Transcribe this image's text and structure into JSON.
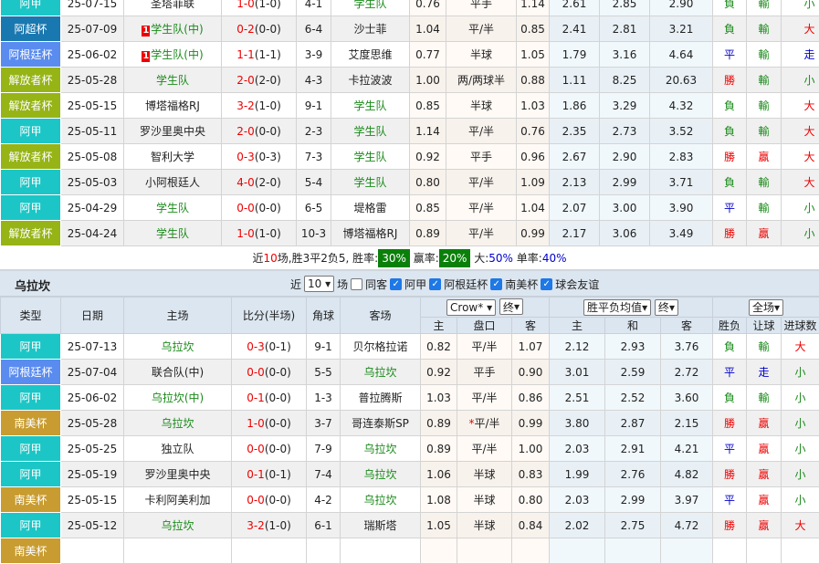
{
  "colors": {
    "阿甲": "#1cc6c6",
    "阿超杯": "#1a78b0",
    "阿根廷杯": "#5a8cf0",
    "解放者杯": "#96b416",
    "南美杯": "#c89c30"
  },
  "top": {
    "rows": [
      {
        "type": "阿甲",
        "date": "25-07-15",
        "home": "圣塔菲联",
        "score": "1-0",
        "ht": "(1-0)",
        "corner": "4-1",
        "away": "学生队",
        "hl": "away",
        "o1": "0.76",
        "line": "平手",
        "o2": "1.14",
        "h": "2.61",
        "d": "2.85",
        "a": "2.90",
        "wl": "負",
        "hc": "輸",
        "ou": "小"
      },
      {
        "type": "阿超杯",
        "date": "25-07-09",
        "home": "学生队(中)",
        "rc": "1",
        "score": "0-2",
        "ht": "(0-0)",
        "corner": "6-4",
        "away": "沙士菲",
        "hl": "home",
        "o1": "1.04",
        "line": "平/半",
        "o2": "0.85",
        "h": "2.41",
        "d": "2.81",
        "a": "3.21",
        "wl": "負",
        "hc": "輸",
        "ou": "大"
      },
      {
        "type": "阿根廷杯",
        "date": "25-06-02",
        "home": "学生队(中)",
        "rc": "1",
        "score": "1-1",
        "ht": "(1-1)",
        "corner": "3-9",
        "away": "艾度思维",
        "hl": "home",
        "o1": "0.77",
        "line": "半球",
        "o2": "1.05",
        "h": "1.79",
        "d": "3.16",
        "a": "4.64",
        "wl": "平",
        "hc": "輸",
        "ou": "走"
      },
      {
        "type": "解放者杯",
        "date": "25-05-28",
        "home": "学生队",
        "score": "2-0",
        "ht": "(2-0)",
        "corner": "4-3",
        "away": "卡拉波波",
        "hl": "home",
        "o1": "1.00",
        "line": "两/两球半",
        "o2": "0.88",
        "h": "1.11",
        "d": "8.25",
        "a": "20.63",
        "wl": "勝",
        "hc": "輸",
        "ou": "小"
      },
      {
        "type": "解放者杯",
        "date": "25-05-15",
        "home": "博塔福格RJ",
        "score": "3-2",
        "ht": "(1-0)",
        "corner": "9-1",
        "away": "学生队",
        "hl": "away",
        "o1": "0.85",
        "line": "半球",
        "o2": "1.03",
        "h": "1.86",
        "d": "3.29",
        "a": "4.32",
        "wl": "負",
        "hc": "輸",
        "ou": "大"
      },
      {
        "type": "阿甲",
        "date": "25-05-11",
        "home": "罗沙里奥中央",
        "score": "2-0",
        "ht": "(0-0)",
        "corner": "2-3",
        "away": "学生队",
        "hl": "away",
        "o1": "1.14",
        "line": "平/半",
        "o2": "0.76",
        "h": "2.35",
        "d": "2.73",
        "a": "3.52",
        "wl": "負",
        "hc": "輸",
        "ou": "大"
      },
      {
        "type": "解放者杯",
        "date": "25-05-08",
        "home": "智利大学",
        "score": "0-3",
        "ht": "(0-3)",
        "corner": "7-3",
        "away": "学生队",
        "hl": "away",
        "o1": "0.92",
        "line": "平手",
        "o2": "0.96",
        "h": "2.67",
        "d": "2.90",
        "a": "2.83",
        "wl": "勝",
        "hc": "贏",
        "ou": "大"
      },
      {
        "type": "阿甲",
        "date": "25-05-03",
        "home": "小阿根廷人",
        "score": "4-0",
        "ht": "(2-0)",
        "corner": "5-4",
        "away": "学生队",
        "hl": "away",
        "o1": "0.80",
        "line": "平/半",
        "o2": "1.09",
        "h": "2.13",
        "d": "2.99",
        "a": "3.71",
        "wl": "負",
        "hc": "輸",
        "ou": "大"
      },
      {
        "type": "阿甲",
        "date": "25-04-29",
        "home": "学生队",
        "score": "0-0",
        "ht": "(0-0)",
        "corner": "6-5",
        "away": "堤格雷",
        "hl": "home",
        "o1": "0.85",
        "line": "平/半",
        "o2": "1.04",
        "h": "2.07",
        "d": "3.00",
        "a": "3.90",
        "wl": "平",
        "hc": "輸",
        "ou": "小"
      },
      {
        "type": "解放者杯",
        "date": "25-04-24",
        "home": "学生队",
        "score": "1-0",
        "ht": "(1-0)",
        "corner": "10-3",
        "away": "博塔福格RJ",
        "hl": "home",
        "o1": "0.89",
        "line": "平/半",
        "o2": "0.99",
        "h": "2.17",
        "d": "3.06",
        "a": "3.49",
        "wl": "勝",
        "hc": "贏",
        "ou": "小"
      }
    ]
  },
  "summary": {
    "p1": "近",
    "n": "10",
    "p2": "场,胜3平2负5, 胜率:",
    "win": "30%",
    "p3": "赢率:",
    "cover": "20%",
    "p4": "大:",
    "over": "50%",
    "p5": "单率:",
    "odd": "40%"
  },
  "section": {
    "team": "乌拉坎",
    "near": "近",
    "count": "10",
    "unit": "场",
    "same": "同客",
    "filters": [
      "阿甲",
      "阿根廷杯",
      "南美杯",
      "球会友谊"
    ]
  },
  "header": {
    "type": "类型",
    "date": "日期",
    "home": "主场",
    "score": "比分(半场)",
    "corner": "角球",
    "away": "客场",
    "company": "Crow*",
    "stage1": "终",
    "avg": "胜平负均值",
    "stage2": "终",
    "scope": "全场",
    "sub": [
      "主",
      "盘口",
      "客",
      "主",
      "和",
      "客",
      "胜负",
      "让球",
      "进球数"
    ]
  },
  "bot": {
    "rows": [
      {
        "type": "阿甲",
        "date": "25-07-13",
        "home": "乌拉坎",
        "score": "0-3",
        "ht": "(0-1)",
        "corner": "9-1",
        "away": "贝尔格拉诺",
        "hl": "home",
        "o1": "0.82",
        "line": "平/半",
        "o2": "1.07",
        "h": "2.12",
        "d": "2.93",
        "a": "3.76",
        "wl": "負",
        "hc": "輸",
        "ou": "大"
      },
      {
        "type": "阿根廷杯",
        "date": "25-07-04",
        "home": "联合队(中)",
        "score": "0-0",
        "ht": "(0-0)",
        "corner": "5-5",
        "away": "乌拉坎",
        "hl": "away",
        "o1": "0.92",
        "line": "平手",
        "o2": "0.90",
        "h": "3.01",
        "d": "2.59",
        "a": "2.72",
        "wl": "平",
        "hc": "走",
        "ou": "小"
      },
      {
        "type": "阿甲",
        "date": "25-06-02",
        "home": "乌拉坎(中)",
        "score": "0-1",
        "ht": "(0-0)",
        "corner": "1-3",
        "away": "普拉腾斯",
        "hl": "home",
        "o1": "1.03",
        "line": "平/半",
        "o2": "0.86",
        "h": "2.51",
        "d": "2.52",
        "a": "3.60",
        "wl": "負",
        "hc": "輸",
        "ou": "小"
      },
      {
        "type": "南美杯",
        "date": "25-05-28",
        "home": "乌拉坎",
        "score": "1-0",
        "ht": "(0-0)",
        "corner": "3-7",
        "away": "哥连泰斯SP",
        "hl": "home",
        "o1": "0.89",
        "star": "*",
        "line": "平/半",
        "o2": "0.99",
        "h": "3.80",
        "d": "2.87",
        "a": "2.15",
        "wl": "勝",
        "hc": "贏",
        "ou": "小"
      },
      {
        "type": "阿甲",
        "date": "25-05-25",
        "home": "独立队",
        "score": "0-0",
        "ht": "(0-0)",
        "corner": "7-9",
        "away": "乌拉坎",
        "hl": "away",
        "o1": "0.89",
        "line": "平/半",
        "o2": "1.00",
        "h": "2.03",
        "d": "2.91",
        "a": "4.21",
        "wl": "平",
        "hc": "贏",
        "ou": "小"
      },
      {
        "type": "阿甲",
        "date": "25-05-19",
        "home": "罗沙里奥中央",
        "score": "0-1",
        "ht": "(0-1)",
        "corner": "7-4",
        "away": "乌拉坎",
        "hl": "away",
        "o1": "1.06",
        "line": "半球",
        "o2": "0.83",
        "h": "1.99",
        "d": "2.76",
        "a": "4.82",
        "wl": "勝",
        "hc": "贏",
        "ou": "小"
      },
      {
        "type": "南美杯",
        "date": "25-05-15",
        "home": "卡利阿美利加",
        "score": "0-0",
        "ht": "(0-0)",
        "corner": "4-2",
        "away": "乌拉坎",
        "hl": "away",
        "o1": "1.08",
        "line": "半球",
        "o2": "0.80",
        "h": "2.03",
        "d": "2.99",
        "a": "3.97",
        "wl": "平",
        "hc": "贏",
        "ou": "小"
      },
      {
        "type": "阿甲",
        "date": "25-05-12",
        "home": "乌拉坎",
        "score": "3-2",
        "ht": "(1-0)",
        "corner": "6-1",
        "away": "瑞斯塔",
        "hl": "home",
        "o1": "1.05",
        "line": "半球",
        "o2": "0.84",
        "h": "2.02",
        "d": "2.75",
        "a": "4.72",
        "wl": "勝",
        "hc": "贏",
        "ou": "大"
      },
      {
        "type": "南美杯",
        "date": "",
        "home": "",
        "score": "",
        "ht": "",
        "corner": "",
        "away": "",
        "hl": "",
        "o1": "",
        "line": "",
        "o2": "",
        "h": "",
        "d": "",
        "a": "",
        "wl": "",
        "hc": "",
        "ou": ""
      }
    ]
  }
}
